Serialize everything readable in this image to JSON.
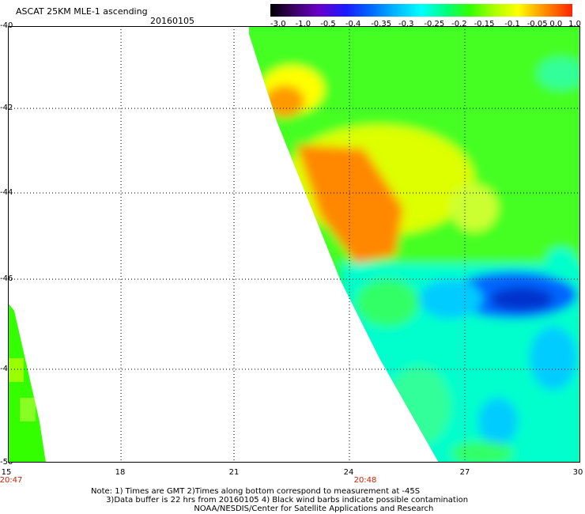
{
  "header": {
    "title": "ASCAT 25KM MLE-1 ascending",
    "date": "20160105"
  },
  "colorbar": {
    "labels": [
      "-3.0",
      "-1.0",
      "-0.5",
      "-0.4",
      "-0.35",
      "-0.3",
      "-0.25",
      "-0.2",
      "-0.15",
      "-0.1",
      "-0.05",
      "0.0",
      "1.0"
    ]
  },
  "map": {
    "lat_labels": [
      "-40",
      "-42",
      "-44",
      "-46",
      "-48",
      "-50"
    ],
    "lon_labels": [
      "15",
      "18",
      "21",
      "24",
      "27",
      "30"
    ],
    "time_labels": [
      "20:47",
      "20:48"
    ]
  },
  "notes": {
    "line1": "Note: 1) Times are GMT 2)Times along bottom correspond to measurement at -45S",
    "line2": "      3)Data buffer is 22 hrs from 20160105 4) Black wind barbs indicate possible contamination",
    "line3": "                                         NOAA/NESDIS/Center for Satellite Applications and Research"
  },
  "colors": {
    "orange": "#ff8800",
    "yellow": "#ffff00",
    "green": "#33ff33",
    "cyan": "#00ffff",
    "blue": "#0066ff",
    "deep_blue": "#0033cc"
  }
}
